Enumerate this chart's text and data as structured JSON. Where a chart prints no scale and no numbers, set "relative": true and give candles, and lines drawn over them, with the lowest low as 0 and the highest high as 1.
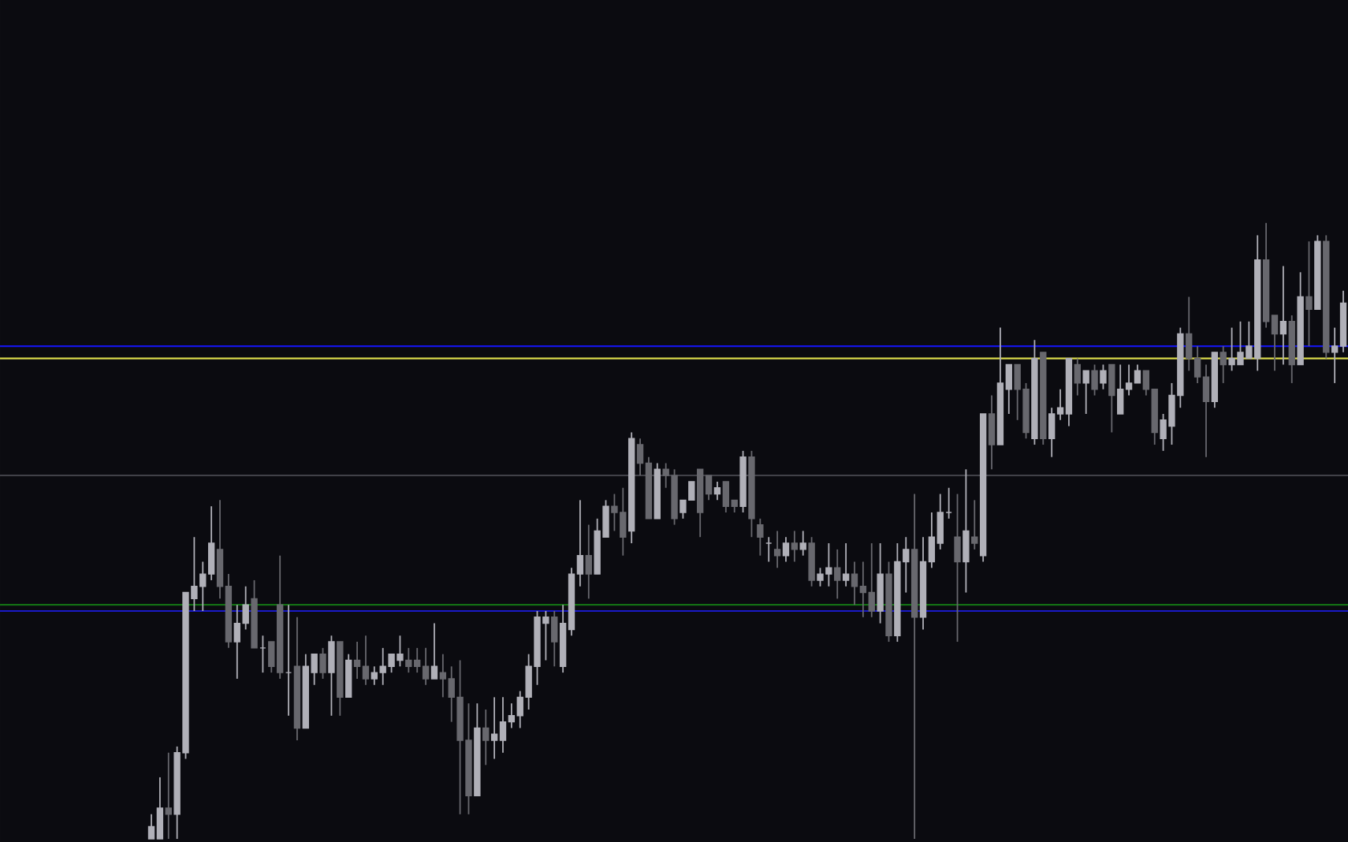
{
  "chart_data": {
    "type": "candlestick",
    "relative": true,
    "categories": [
      null,
      null,
      null,
      null,
      null,
      null,
      null,
      null,
      null,
      null,
      null,
      null,
      null,
      null,
      null,
      null,
      null,
      null,
      null,
      null,
      null,
      null,
      null,
      null,
      null,
      null,
      null,
      null,
      null,
      null,
      null,
      null,
      null,
      null,
      null,
      null,
      null,
      null,
      null,
      null,
      null,
      null,
      null,
      null,
      null,
      null,
      null,
      null,
      null,
      null,
      null,
      null,
      null,
      null,
      null,
      null,
      null,
      null,
      null,
      null,
      null,
      null,
      null,
      null,
      null,
      null,
      null,
      null,
      null,
      null,
      null,
      null,
      null,
      null,
      null,
      null,
      null,
      null,
      null,
      null,
      null,
      null,
      null,
      null,
      null,
      null,
      null,
      null,
      null,
      null,
      null,
      null,
      null,
      null,
      null,
      null,
      null,
      null,
      null,
      null,
      null,
      null,
      null,
      null,
      null,
      null,
      null,
      null,
      null,
      null,
      null,
      null,
      null,
      null,
      null,
      null,
      null,
      null,
      null,
      null,
      null,
      null,
      null,
      null,
      null,
      null,
      null,
      null,
      null,
      null,
      null,
      null,
      null,
      null,
      null,
      null,
      null,
      null,
      null,
      null
    ],
    "ohlc": [
      [
        0.0,
        0.04,
        0.0,
        0.02
      ],
      [
        0.0,
        0.1,
        0.0,
        0.05
      ],
      [
        0.05,
        0.14,
        0.0,
        0.04
      ],
      [
        0.04,
        0.15,
        0.0,
        0.14
      ],
      [
        0.14,
        0.4,
        0.13,
        0.4
      ],
      [
        0.39,
        0.49,
        0.37,
        0.41
      ],
      [
        0.41,
        0.45,
        0.37,
        0.43
      ],
      [
        0.43,
        0.54,
        0.42,
        0.48
      ],
      [
        0.47,
        0.55,
        0.39,
        0.41
      ],
      [
        0.41,
        0.43,
        0.31,
        0.32
      ],
      [
        0.32,
        0.38,
        0.26,
        0.35
      ],
      [
        0.35,
        0.41,
        0.34,
        0.38
      ],
      [
        0.39,
        0.42,
        0.31,
        0.31
      ],
      [
        0.31,
        0.33,
        0.27,
        0.31
      ],
      [
        0.32,
        0.32,
        0.27,
        0.28
      ],
      [
        0.38,
        0.46,
        0.26,
        0.27
      ],
      [
        0.27,
        0.38,
        0.2,
        0.27
      ],
      [
        0.28,
        0.36,
        0.16,
        0.18
      ],
      [
        0.18,
        0.3,
        0.18,
        0.28
      ],
      [
        0.27,
        0.3,
        0.25,
        0.3
      ],
      [
        0.3,
        0.31,
        0.26,
        0.27
      ],
      [
        0.27,
        0.33,
        0.2,
        0.32
      ],
      [
        0.32,
        0.32,
        0.2,
        0.23
      ],
      [
        0.23,
        0.3,
        0.23,
        0.29
      ],
      [
        0.29,
        0.32,
        0.26,
        0.28
      ],
      [
        0.28,
        0.33,
        0.25,
        0.26
      ],
      [
        0.26,
        0.28,
        0.25,
        0.27
      ],
      [
        0.27,
        0.31,
        0.25,
        0.28
      ],
      [
        0.28,
        0.3,
        0.27,
        0.3
      ],
      [
        0.29,
        0.33,
        0.28,
        0.3
      ],
      [
        0.29,
        0.31,
        0.27,
        0.28
      ],
      [
        0.29,
        0.31,
        0.27,
        0.28
      ],
      [
        0.28,
        0.31,
        0.25,
        0.26
      ],
      [
        0.26,
        0.35,
        0.26,
        0.28
      ],
      [
        0.27,
        0.3,
        0.23,
        0.26
      ],
      [
        0.26,
        0.28,
        0.19,
        0.23
      ],
      [
        0.23,
        0.29,
        0.04,
        0.16
      ],
      [
        0.16,
        0.22,
        0.04,
        0.07
      ],
      [
        0.07,
        0.22,
        0.07,
        0.18
      ],
      [
        0.18,
        0.21,
        0.12,
        0.16
      ],
      [
        0.16,
        0.23,
        0.13,
        0.17
      ],
      [
        0.16,
        0.23,
        0.14,
        0.19
      ],
      [
        0.19,
        0.22,
        0.18,
        0.2
      ],
      [
        0.2,
        0.24,
        0.18,
        0.23
      ],
      [
        0.23,
        0.3,
        0.21,
        0.28
      ],
      [
        0.28,
        0.37,
        0.25,
        0.36
      ],
      [
        0.35,
        0.37,
        0.29,
        0.36
      ],
      [
        0.36,
        0.37,
        0.28,
        0.32
      ],
      [
        0.28,
        0.38,
        0.27,
        0.35
      ],
      [
        0.34,
        0.44,
        0.33,
        0.43
      ],
      [
        0.43,
        0.55,
        0.41,
        0.46
      ],
      [
        0.46,
        0.51,
        0.39,
        0.43
      ],
      [
        0.43,
        0.52,
        0.43,
        0.5
      ],
      [
        0.49,
        0.55,
        0.49,
        0.54
      ],
      [
        0.54,
        0.56,
        0.5,
        0.53
      ],
      [
        0.53,
        0.57,
        0.46,
        0.49
      ],
      [
        0.5,
        0.66,
        0.48,
        0.65
      ],
      [
        0.64,
        0.65,
        0.59,
        0.61
      ],
      [
        0.61,
        0.62,
        0.52,
        0.52
      ],
      [
        0.52,
        0.61,
        0.52,
        0.6
      ],
      [
        0.6,
        0.61,
        0.57,
        0.59
      ],
      [
        0.59,
        0.6,
        0.51,
        0.52
      ],
      [
        0.53,
        0.55,
        0.52,
        0.55
      ],
      [
        0.55,
        0.58,
        0.55,
        0.58
      ],
      [
        0.6,
        0.6,
        0.49,
        0.53
      ],
      [
        0.59,
        0.59,
        0.55,
        0.56
      ],
      [
        0.56,
        0.58,
        0.55,
        0.57
      ],
      [
        0.58,
        0.58,
        0.53,
        0.54
      ],
      [
        0.55,
        0.55,
        0.53,
        0.54
      ],
      [
        0.54,
        0.63,
        0.53,
        0.62
      ],
      [
        0.62,
        0.63,
        0.49,
        0.52
      ],
      [
        0.51,
        0.52,
        0.46,
        0.49
      ],
      [
        0.48,
        0.49,
        0.45,
        0.48
      ],
      [
        0.47,
        0.5,
        0.44,
        0.46
      ],
      [
        0.46,
        0.49,
        0.45,
        0.48
      ],
      [
        0.48,
        0.5,
        0.45,
        0.47
      ],
      [
        0.47,
        0.5,
        0.46,
        0.48
      ],
      [
        0.48,
        0.49,
        0.41,
        0.42
      ],
      [
        0.42,
        0.44,
        0.41,
        0.43
      ],
      [
        0.43,
        0.48,
        0.41,
        0.44
      ],
      [
        0.44,
        0.47,
        0.39,
        0.42
      ],
      [
        0.42,
        0.48,
        0.41,
        0.43
      ],
      [
        0.43,
        0.45,
        0.38,
        0.41
      ],
      [
        0.41,
        0.45,
        0.36,
        0.4
      ],
      [
        0.4,
        0.48,
        0.36,
        0.37
      ],
      [
        0.37,
        0.48,
        0.35,
        0.43
      ],
      [
        0.43,
        0.45,
        0.32,
        0.33
      ],
      [
        0.33,
        0.48,
        0.32,
        0.45
      ],
      [
        0.45,
        0.49,
        0.4,
        0.47
      ],
      [
        0.47,
        0.56,
        0.0,
        0.36
      ],
      [
        0.36,
        0.49,
        0.34,
        0.45
      ],
      [
        0.45,
        0.53,
        0.44,
        0.49
      ],
      [
        0.48,
        0.56,
        0.47,
        0.53
      ],
      [
        0.53,
        0.57,
        0.52,
        0.53
      ],
      [
        0.49,
        0.56,
        0.32,
        0.45
      ],
      [
        0.45,
        0.6,
        0.4,
        0.5
      ],
      [
        0.49,
        0.55,
        0.47,
        0.48
      ],
      [
        0.46,
        0.69,
        0.45,
        0.69
      ],
      [
        0.69,
        0.72,
        0.6,
        0.64
      ],
      [
        0.64,
        0.83,
        0.64,
        0.74
      ],
      [
        0.73,
        0.77,
        0.69,
        0.77
      ],
      [
        0.77,
        0.77,
        0.68,
        0.73
      ],
      [
        0.73,
        0.74,
        0.65,
        0.66
      ],
      [
        0.65,
        0.81,
        0.64,
        0.78
      ],
      [
        0.79,
        0.79,
        0.64,
        0.65
      ],
      [
        0.65,
        0.7,
        0.62,
        0.69
      ],
      [
        0.69,
        0.73,
        0.68,
        0.7
      ],
      [
        0.69,
        0.78,
        0.67,
        0.78
      ],
      [
        0.77,
        0.78,
        0.72,
        0.74
      ],
      [
        0.74,
        0.76,
        0.69,
        0.76
      ],
      [
        0.76,
        0.77,
        0.72,
        0.73
      ],
      [
        0.74,
        0.77,
        0.73,
        0.76
      ],
      [
        0.77,
        0.77,
        0.66,
        0.72
      ],
      [
        0.69,
        0.77,
        0.69,
        0.73
      ],
      [
        0.73,
        0.77,
        0.72,
        0.74
      ],
      [
        0.74,
        0.77,
        0.74,
        0.76
      ],
      [
        0.76,
        0.76,
        0.72,
        0.73
      ],
      [
        0.73,
        0.73,
        0.64,
        0.66
      ],
      [
        0.65,
        0.69,
        0.63,
        0.68
      ],
      [
        0.67,
        0.74,
        0.64,
        0.72
      ],
      [
        0.72,
        0.83,
        0.7,
        0.82
      ],
      [
        0.82,
        0.88,
        0.76,
        0.78
      ],
      [
        0.78,
        0.8,
        0.74,
        0.75
      ],
      [
        0.75,
        0.77,
        0.62,
        0.71
      ],
      [
        0.71,
        0.79,
        0.7,
        0.79
      ],
      [
        0.79,
        0.8,
        0.74,
        0.77
      ],
      [
        0.77,
        0.83,
        0.76,
        0.78
      ],
      [
        0.77,
        0.84,
        0.77,
        0.79
      ],
      [
        0.78,
        0.84,
        0.78,
        0.8
      ],
      [
        0.78,
        0.98,
        0.76,
        0.94
      ],
      [
        0.94,
        1.0,
        0.83,
        0.84
      ],
      [
        0.85,
        0.85,
        0.76,
        0.82
      ],
      [
        0.82,
        0.93,
        0.77,
        0.84
      ],
      [
        0.84,
        0.85,
        0.74,
        0.77
      ],
      [
        0.77,
        0.92,
        0.77,
        0.88
      ],
      [
        0.88,
        0.97,
        0.8,
        0.86
      ],
      [
        0.86,
        0.98,
        0.86,
        0.97
      ],
      [
        0.97,
        0.98,
        0.78,
        0.79
      ],
      [
        0.79,
        0.83,
        0.74,
        0.8
      ],
      [
        0.8,
        0.89,
        0.79,
        0.87
      ]
    ],
    "ref_lines": [
      {
        "axis": "y",
        "value": 0.8,
        "color": "#1414e6"
      },
      {
        "axis": "y",
        "value": 0.78,
        "color": "#d8d84a"
      },
      {
        "axis": "y",
        "value": 0.59,
        "color": "#414148"
      },
      {
        "axis": "y",
        "value": 0.38,
        "color": "#147014"
      },
      {
        "axis": "y",
        "value": 0.37,
        "color": "#1a1ac8"
      }
    ]
  }
}
